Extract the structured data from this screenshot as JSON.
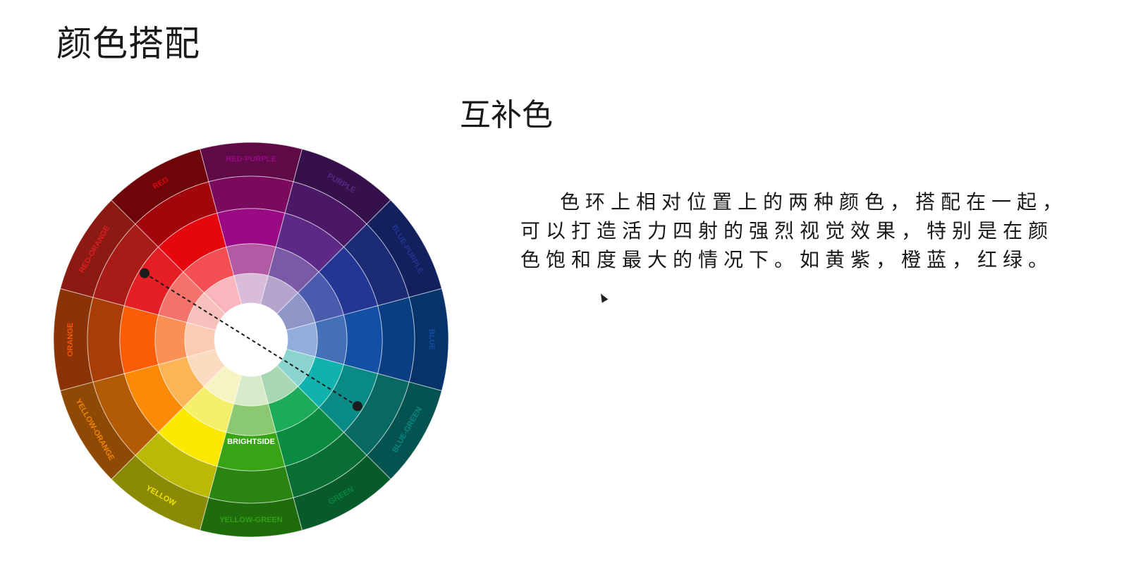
{
  "slide": {
    "title": "颜色搭配",
    "section_title": "互补色",
    "description": "色环上相对位置上的两种颜色，搭配在一起，可以打造活力四射的强烈视觉效果，特别是在颜色饱和度最大的情况下。如黄紫，橙蓝，红绿。"
  },
  "wheel": {
    "watermark": "BRIGHTSIDE",
    "segments": [
      {
        "label": "RED-PURPLE",
        "colors": [
          "#5e0a47",
          "#7a0a5e",
          "#9b0a84",
          "#b25aa3",
          "#d8bcd9"
        ]
      },
      {
        "label": "PURPLE",
        "colors": [
          "#36104b",
          "#4a1866",
          "#5c2a86",
          "#7a5aa6",
          "#b5a4cc"
        ]
      },
      {
        "label": "BLUE-PURPLE",
        "colors": [
          "#13205e",
          "#1b2b76",
          "#233694",
          "#4a5bad",
          "#8e96c8"
        ]
      },
      {
        "label": "BLUE",
        "colors": [
          "#06336a",
          "#0a3e82",
          "#144fa6",
          "#4470b8",
          "#93aedb"
        ]
      },
      {
        "label": "BLUE-GREEN",
        "colors": [
          "#055350",
          "#086862",
          "#0a8a85",
          "#0fb2ac",
          "#8ad3cf"
        ]
      },
      {
        "label": "GREEN",
        "colors": [
          "#075a2a",
          "#096e33",
          "#0a8b3f",
          "#1cab58",
          "#a7d8b2"
        ]
      },
      {
        "label": "YELLOW-GREEN",
        "colors": [
          "#1f6c0c",
          "#2a8412",
          "#36a414",
          "#8ac971",
          "#d7eac9"
        ]
      },
      {
        "label": "YELLOW",
        "colors": [
          "#8b8a05",
          "#bbb806",
          "#fbe902",
          "#f4f06a",
          "#f8f3c2"
        ]
      },
      {
        "label": "YELLOW-ORANGE",
        "colors": [
          "#8e4905",
          "#b35a05",
          "#fb8b06",
          "#fbb557",
          "#fbdcc0"
        ]
      },
      {
        "label": "ORANGE",
        "colors": [
          "#8a3307",
          "#a83d07",
          "#fb5c07",
          "#fb9055",
          "#fbcbb2"
        ]
      },
      {
        "label": "RED-ORANGE",
        "colors": [
          "#8a1a12",
          "#a81c18",
          "#e31f24",
          "#f3736a",
          "#f8c0bd"
        ]
      },
      {
        "label": "RED",
        "colors": [
          "#6e0508",
          "#a0060a",
          "#e5060e",
          "#f44e55",
          "#f9b7bd"
        ]
      }
    ],
    "colors": {
      "dot": "#1c1c1c",
      "label": "#3a0000"
    }
  }
}
